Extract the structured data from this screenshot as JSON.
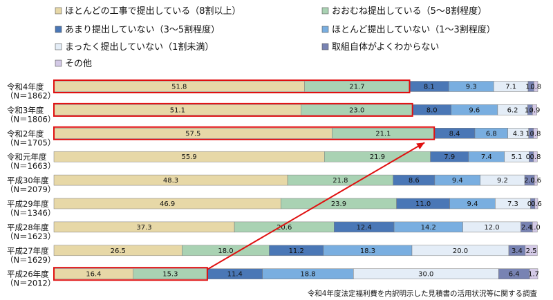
{
  "chart_data": {
    "type": "bar",
    "orientation": "horizontal",
    "stacked": true,
    "xlim": [
      0,
      100
    ],
    "source": "令和4年度法定福利費を内訳明示した見積書の活用状況等に関する調査",
    "categories": [
      {
        "year": "令和4年度",
        "n": "（N＝1862）"
      },
      {
        "year": "令和3年度",
        "n": "（N＝1806）"
      },
      {
        "year": "令和2年度",
        "n": "（N＝1705）"
      },
      {
        "year": "令和元年度",
        "n": "（N＝1663）"
      },
      {
        "year": "平成30年度",
        "n": "（N＝2079）"
      },
      {
        "year": "平成29年度",
        "n": "（N＝1346）"
      },
      {
        "year": "平成28年度",
        "n": "（N＝1623）"
      },
      {
        "year": "平成27年度",
        "n": "（N＝1629）"
      },
      {
        "year": "平成26年度",
        "n": "（N＝2012）"
      }
    ],
    "series": [
      {
        "name": "ほとんどの工事で提出している（8割以上）",
        "color": "#e7d8a7",
        "values": [
          51.8,
          51.1,
          57.5,
          55.9,
          48.3,
          46.9,
          37.3,
          26.5,
          16.4
        ]
      },
      {
        "name": "おおむね提出している（5～8割程度）",
        "color": "#a9d2b3",
        "values": [
          21.7,
          23.0,
          21.1,
          21.9,
          21.8,
          23.9,
          20.6,
          18.0,
          15.3
        ]
      },
      {
        "name": "あまり提出していない（3～5割程度）",
        "color": "#4a77b6",
        "values": [
          8.1,
          8.0,
          8.4,
          7.9,
          8.6,
          11.0,
          12.4,
          11.2,
          11.4
        ]
      },
      {
        "name": "ほとんど提出していない（1～3割程度）",
        "color": "#79aee0",
        "values": [
          9.3,
          9.6,
          6.8,
          7.4,
          9.4,
          9.4,
          14.2,
          18.3,
          18.8
        ]
      },
      {
        "name": "まったく提出していない（1割未満）",
        "color": "#e4edf7",
        "values": [
          7.1,
          6.2,
          4.3,
          5.1,
          9.2,
          7.3,
          12.0,
          20.0,
          30.0
        ]
      },
      {
        "name": "取組自体がよくわからない",
        "color": "#7883b3",
        "values": [
          1.2,
          1.0,
          1.0,
          0.9,
          2.0,
          0.9,
          2.4,
          3.4,
          6.4
        ]
      },
      {
        "name": "その他",
        "color": "#d3c9e6",
        "values": [
          0.8,
          0.9,
          0.8,
          0.8,
          0.6,
          0.6,
          1.0,
          2.5,
          1.7
        ]
      }
    ],
    "highlighted_categories": [
      "令和4年度",
      "令和3年度",
      "令和2年度",
      "平成26年度"
    ],
    "highlight_color": "#e01010",
    "legend_position": "top"
  }
}
